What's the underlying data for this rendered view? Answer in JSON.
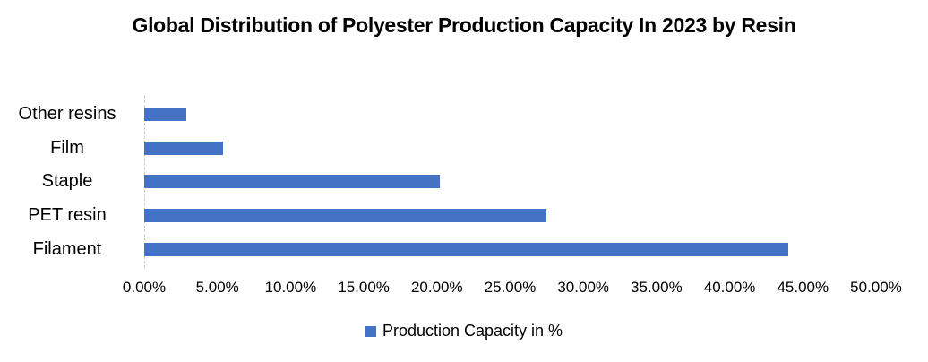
{
  "title": "Global Distribution of Polyester Production Capacity In 2023 by Resin",
  "colors": {
    "bar": "#4472C4",
    "axis_line": "#C9C9C9",
    "text": "#000000",
    "background": "#FFFFFF"
  },
  "legend": {
    "swatch_icon": "legend-square-icon",
    "label": "Production Capacity in %",
    "position": "bottom"
  },
  "chart_data": {
    "type": "bar",
    "orientation": "horizontal",
    "title": "Global Distribution of Polyester Production Capacity In 2023 by Resin",
    "categories": [
      "Other resins",
      "Film",
      "Staple",
      "PET resin",
      "Filament"
    ],
    "series": [
      {
        "name": "Production Capacity in %",
        "color": "#4472C4",
        "values": [
          2.9,
          5.4,
          20.2,
          27.5,
          44.0
        ]
      }
    ],
    "xlabel": "",
    "ylabel": "",
    "xlim": [
      0,
      50
    ],
    "x_tick_step": 5,
    "x_ticks": [
      "0.00%",
      "5.00%",
      "10.00%",
      "15.00%",
      "20.00%",
      "25.00%",
      "30.00%",
      "35.00%",
      "40.00%",
      "45.00%",
      "50.00%"
    ],
    "grid": false,
    "legend_position": "bottom"
  }
}
